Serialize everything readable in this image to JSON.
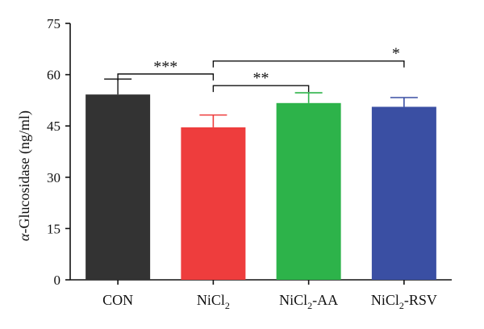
{
  "chart_data": {
    "type": "bar",
    "title": "",
    "xlabel": "",
    "ylabel_prefix": "α",
    "ylabel_rest": "-Glucosidase (ng/ml)",
    "ylim": [
      0,
      75
    ],
    "yticks": [
      "0",
      "15",
      "30",
      "45",
      "60",
      "75"
    ],
    "categories": [
      {
        "base": "CON",
        "sub": "",
        "suffix": ""
      },
      {
        "base": "NiCl",
        "sub": "2",
        "suffix": ""
      },
      {
        "base": "NiCl",
        "sub": "2",
        "suffix": "-AA"
      },
      {
        "base": "NiCl",
        "sub": "2",
        "suffix": "-RSV"
      }
    ],
    "values": [
      54.2,
      44.6,
      51.7,
      50.6
    ],
    "errors": [
      4.5,
      3.6,
      3.0,
      2.7
    ],
    "colors": [
      "#333333",
      "#ee3d3d",
      "#2db34a",
      "#3a4fa3"
    ],
    "significance": [
      {
        "from": 0,
        "to": 1,
        "label": "***",
        "y": 60.2
      },
      {
        "from": 1,
        "to": 2,
        "label": "**",
        "y": 56.8
      },
      {
        "from": 1,
        "to": 3,
        "label": "*",
        "y": 64.0
      }
    ],
    "grid": false,
    "legend": "none"
  }
}
